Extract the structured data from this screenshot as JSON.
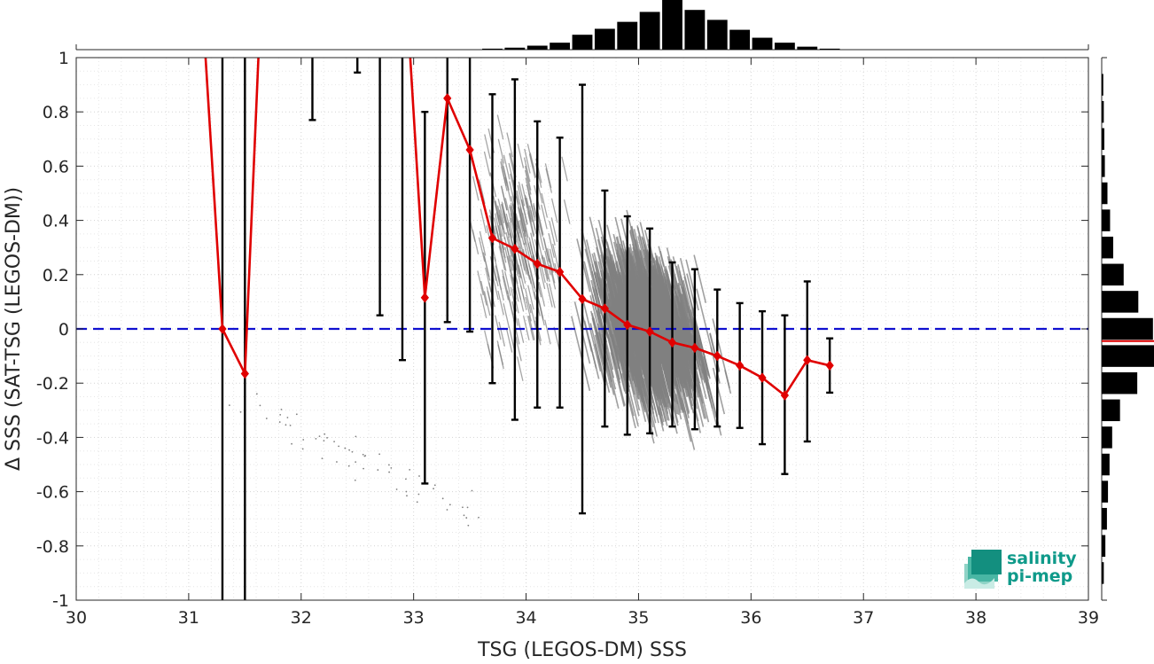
{
  "chart_data": {
    "type": "scatter",
    "xlabel": "TSG (LEGOS-DM) SSS",
    "ylabel": "Δ SSS (SAT-TSG (LEGOS-DM))",
    "xlim": [
      30,
      39
    ],
    "ylim": [
      -1,
      1
    ],
    "xticks": [
      "30",
      "31",
      "32",
      "33",
      "34",
      "35",
      "36",
      "37",
      "38",
      "39"
    ],
    "yticks": [
      "-1",
      "-0.8",
      "-0.6",
      "-0.4",
      "-0.2",
      "0",
      "0.2",
      "0.4",
      "0.6",
      "0.8",
      "1"
    ],
    "grid": true,
    "zero_line": {
      "y": 0,
      "style": "dashed",
      "color": "#1010d0"
    },
    "scatter_color": "#808080",
    "mean_series": {
      "color": "#e00000",
      "x": [
        31.3,
        31.5,
        33.1,
        33.3,
        33.5,
        33.7,
        33.9,
        34.1,
        34.3,
        34.5,
        34.7,
        34.9,
        35.1,
        35.3,
        35.5,
        35.7,
        35.9,
        36.1,
        36.3,
        36.5,
        36.7
      ],
      "y": [
        0.0,
        -0.165,
        0.115,
        0.85,
        0.66,
        0.335,
        0.295,
        0.24,
        0.21,
        0.11,
        0.075,
        0.015,
        -0.01,
        -0.05,
        -0.07,
        -0.1,
        -0.135,
        -0.18,
        -0.245,
        -0.115,
        -0.135
      ],
      "offscale_segments": [
        [
          31.15,
          1.0,
          31.3,
          0.0
        ],
        [
          31.5,
          -0.165,
          31.62,
          1.0
        ],
        [
          32.97,
          1.0,
          33.1,
          0.115
        ]
      ]
    },
    "error_bars": {
      "color": "#000000",
      "items": [
        {
          "x": 31.3,
          "low": -1.0,
          "high": 1.0,
          "capped": false
        },
        {
          "x": 31.5,
          "low": -1.0,
          "high": 1.0,
          "capped": false
        },
        {
          "x": 32.1,
          "low": 0.77,
          "high": 1.0,
          "capped": true
        },
        {
          "x": 32.5,
          "low": 0.945,
          "high": 1.0,
          "capped": true
        },
        {
          "x": 32.7,
          "low": 0.05,
          "high": 1.0,
          "capped": true
        },
        {
          "x": 32.9,
          "low": -0.115,
          "high": 1.0,
          "capped": true
        },
        {
          "x": 33.1,
          "low": -0.57,
          "high": 0.8,
          "capped": true
        },
        {
          "x": 33.3,
          "low": 0.025,
          "high": 1.0,
          "capped": true
        },
        {
          "x": 33.5,
          "low": -0.01,
          "high": 1.0,
          "capped": true
        },
        {
          "x": 33.7,
          "low": -0.2,
          "high": 0.865,
          "capped": true
        },
        {
          "x": 33.9,
          "low": -0.335,
          "high": 0.92,
          "capped": true
        },
        {
          "x": 34.1,
          "low": -0.29,
          "high": 0.765,
          "capped": true
        },
        {
          "x": 34.3,
          "low": -0.29,
          "high": 0.705,
          "capped": true
        },
        {
          "x": 34.5,
          "low": -0.68,
          "high": 0.9,
          "capped": true
        },
        {
          "x": 34.7,
          "low": -0.36,
          "high": 0.51,
          "capped": true
        },
        {
          "x": 34.9,
          "low": -0.39,
          "high": 0.415,
          "capped": true
        },
        {
          "x": 35.1,
          "low": -0.385,
          "high": 0.37,
          "capped": true
        },
        {
          "x": 35.3,
          "low": -0.36,
          "high": 0.245,
          "capped": true
        },
        {
          "x": 35.5,
          "low": -0.37,
          "high": 0.22,
          "capped": true
        },
        {
          "x": 35.7,
          "low": -0.36,
          "high": 0.145,
          "capped": true
        },
        {
          "x": 35.9,
          "low": -0.365,
          "high": 0.095,
          "capped": true
        },
        {
          "x": 36.1,
          "low": -0.425,
          "high": 0.065,
          "capped": true
        },
        {
          "x": 36.3,
          "low": -0.535,
          "high": 0.05,
          "capped": true
        },
        {
          "x": 36.5,
          "low": -0.415,
          "high": 0.175,
          "capped": true
        },
        {
          "x": 36.7,
          "low": -0.235,
          "high": -0.035,
          "capped": true
        }
      ]
    },
    "top_histogram": {
      "color": "#000000",
      "bin_centers": [
        33.7,
        33.9,
        34.1,
        34.3,
        34.5,
        34.7,
        34.9,
        35.1,
        35.3,
        35.5,
        35.7,
        35.9,
        36.1,
        36.3,
        36.5,
        36.7
      ],
      "relative_heights": [
        0.02,
        0.04,
        0.08,
        0.14,
        0.3,
        0.42,
        0.56,
        0.76,
        1.0,
        0.8,
        0.6,
        0.4,
        0.24,
        0.14,
        0.06,
        0.02
      ]
    },
    "right_histogram": {
      "color": "#000000",
      "bin_centers": [
        0.9,
        0.8,
        0.7,
        0.6,
        0.5,
        0.4,
        0.3,
        0.2,
        0.1,
        0.0,
        -0.1,
        -0.2,
        -0.3,
        -0.4,
        -0.5,
        -0.6,
        -0.7,
        -0.8,
        -0.9
      ],
      "relative_widths": [
        0.03,
        0.04,
        0.05,
        0.06,
        0.11,
        0.16,
        0.22,
        0.42,
        0.7,
        0.98,
        1.0,
        0.68,
        0.35,
        0.2,
        0.15,
        0.12,
        0.1,
        0.07,
        0.04
      ],
      "mean_line": {
        "y": -0.045,
        "color": "#e00000"
      }
    },
    "logo": {
      "line1": "salinity",
      "line2": "pi-mep"
    }
  }
}
